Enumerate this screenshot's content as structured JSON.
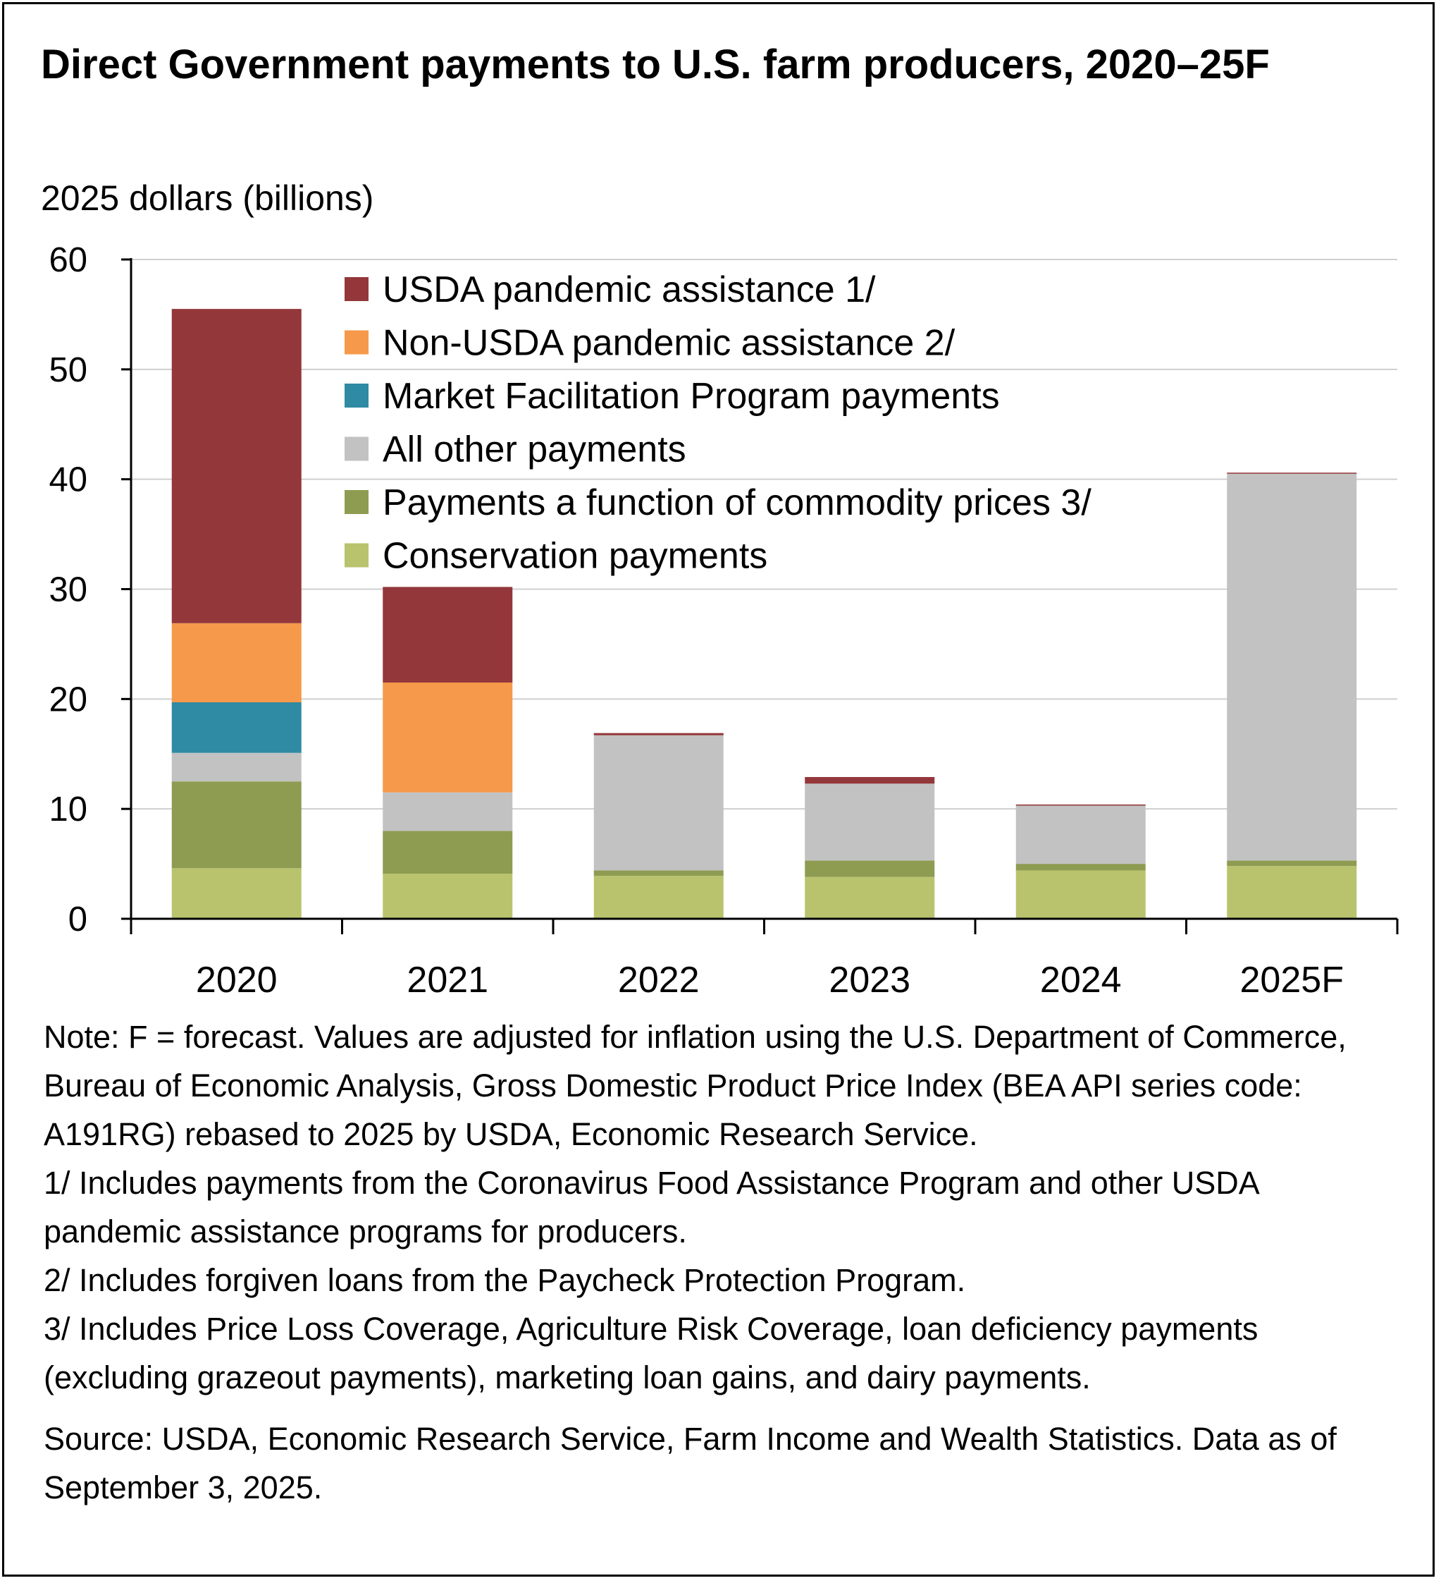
{
  "title": "Direct Government payments to U.S. farm producers, 2020–25F",
  "unit_label": "2025 dollars (billions)",
  "chart_data": {
    "type": "bar",
    "stacked": true,
    "categories": [
      "2020",
      "2021",
      "2022",
      "2023",
      "2024",
      "2025F"
    ],
    "ylim": [
      0,
      60
    ],
    "yticks": [
      0,
      10,
      20,
      30,
      40,
      50,
      60
    ],
    "grid": true,
    "legend_position": "top, inside plot",
    "series": [
      {
        "name": "Conservation payments",
        "color": "#b9c36d",
        "values": [
          4.6,
          4.1,
          3.9,
          3.8,
          4.4,
          4.8
        ]
      },
      {
        "name": "Payments a function of commodity prices 3/",
        "color": "#8e9c52",
        "values": [
          7.9,
          3.9,
          0.5,
          1.5,
          0.6,
          0.5
        ]
      },
      {
        "name": "All other payments",
        "color": "#c2c2c2",
        "values": [
          2.6,
          3.5,
          12.3,
          7.0,
          5.3,
          35.2
        ]
      },
      {
        "name": "Market Facilitation Program payments",
        "color": "#2f8aa3",
        "values": [
          4.6,
          0,
          0,
          0,
          0,
          0
        ]
      },
      {
        "name": "Non-USDA pandemic assistance 2/",
        "color": "#f6994a",
        "values": [
          7.2,
          10.0,
          0,
          0,
          0,
          0
        ]
      },
      {
        "name": "USDA pandemic assistance 1/",
        "color": "#93373a",
        "values": [
          28.6,
          8.7,
          0.2,
          0.6,
          0.1,
          0.1
        ]
      }
    ]
  },
  "notes": [
    "Note: F = forecast. Values are adjusted for inflation using the U.S. Department of Commerce, Bureau of Economic Analysis, Gross Domestic Product Price Index (BEA API series code: A191RG) rebased to 2025 by USDA, Economic Research Service.",
    "1/ Includes payments from the Coronavirus Food Assistance Program and other USDA pandemic assistance programs for producers.",
    "2/ Includes forgiven loans from the Paycheck Protection Program.",
    "3/ Includes Price Loss Coverage, Agriculture Risk Coverage, loan deficiency payments (excluding grazeout payments), marketing loan gains, and dairy payments."
  ],
  "source": "Source: USDA, Economic Research Service, Farm Income and Wealth Statistics. Data as of September 3, 2025."
}
